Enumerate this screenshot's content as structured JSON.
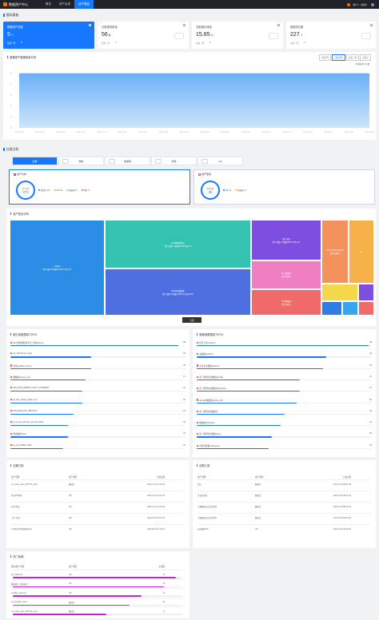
{
  "app": {
    "title": "数据资产中心",
    "user": "用户1（机构）"
  },
  "nav": [
    {
      "label": "概览"
    },
    {
      "label": "资产目录"
    },
    {
      "label": "资产报告"
    }
  ],
  "sections": {
    "overview": "指标看板",
    "distribution": "分类分析"
  },
  "stats": [
    {
      "label": "数据资产总数",
      "value": "5",
      "unit": "个",
      "sub1": "比前一天",
      "sub2": "↑0"
    },
    {
      "label": "总数据项数量",
      "value": "56",
      "unit": "条",
      "sub1": "比前一天",
      "sub2": "↑0"
    },
    {
      "label": "总数据存储量",
      "value": "15.85",
      "unit": "%",
      "sub1": "比前一天",
      "sub2": "↑0"
    },
    {
      "label": "数据项总数",
      "value": "227",
      "unit": "个",
      "sub1": "比前一天",
      "sub2": "↑0"
    }
  ],
  "trend": {
    "title": "数据资产数据增量分析",
    "tabs": [
      "过去7天",
      "过去30天",
      "过去一年",
      "自定义"
    ],
    "active_tab": 1,
    "legend": "数据资产总量",
    "color": "#5aa8f5",
    "chart_data": {
      "type": "area",
      "x": [
        "2021-11-28",
        "2021-12-02",
        "2021-12-06",
        "2021-12-10",
        "2021-12-14",
        "2021-12-18",
        "2021-12-22",
        "2021-12-26",
        "2021-12-30",
        "2022-01-03",
        "2022-01-07",
        "2022-01-11",
        "2022-01-15",
        "2022-01-19",
        "2022-01-23",
        "2022-01-27",
        "2022-01-31",
        "2022-02-04"
      ],
      "yticks": [
        "5",
        "4",
        "3",
        "2",
        "1",
        "0"
      ],
      "series": [
        {
          "values": [
            5,
            5,
            5,
            5,
            5,
            5,
            5,
            5,
            5,
            5,
            5,
            5,
            5,
            5,
            5,
            5,
            5,
            5
          ]
        }
      ],
      "ylim": [
        0,
        5
      ]
    }
  },
  "type_tabs": [
    "全部",
    "物联",
    "数据库",
    "视觉",
    "API"
  ],
  "summary": [
    {
      "title": "资产分布",
      "ring_label": "资产总数",
      "ring_value": "372",
      "legend": [
        {
          "label": "数据库 207",
          "color": "#1677ff"
        },
        {
          "label": "API 99",
          "color": "#ff9f43"
        },
        {
          "label": "数据集 29",
          "color": "#5ad8a6"
        },
        {
          "label": "物联 37",
          "color": "#f25c54"
        }
      ]
    },
    {
      "title": "资产使用",
      "ring_label": "使用总数",
      "ring_value": "35",
      "legend": [
        {
          "label": "API 13",
          "color": "#1677ff"
        },
        {
          "label": "数据集 22",
          "color": "#ff9f43"
        }
      ]
    }
  ],
  "treemap": {
    "title": "资产类目分析",
    "button": "全部",
    "tiles": [
      {
        "label": "• 项目Pr",
        "sub": "资产总数 58  数据 125.40  评估 417",
        "color": "#2b8de3"
      },
      {
        "label": "jdbc数据源测试",
        "sub": "资产总数 41  数据 55.00  评估 70",
        "color": "#36c2b1"
      },
      {
        "label": "jdbc测试数据源",
        "sub": "资产总数 14  数据 7183.10  评估 4917",
        "color": "#4f6fe0"
      },
      {
        "label": "施工应用",
        "sub": "资产总数 17  数据 88.73  评估 117",
        "color": "#7e4ee0"
      },
      {
        "label": "单一数据库",
        "sub": "资产总数 3",
        "color": "#ef7fc1"
      },
      {
        "label": "FTP/数据源",
        "sub": "资产总数 3",
        "color": "#f06a6a"
      },
      {
        "label": "doudouzhong04003",
        "sub": "资产总数 2",
        "color": "#f3925c"
      },
      {
        "label": "xxx",
        "sub": "",
        "color": "#f5b04a"
      },
      {
        "label": "",
        "sub": "",
        "color": "#f5d84a"
      },
      {
        "label": "",
        "sub": "",
        "color": "#2f7de0"
      },
      {
        "label": "",
        "sub": "",
        "color": "#36a6f0"
      },
      {
        "label": "",
        "sub": "",
        "color": "#7e4ee0"
      },
      {
        "label": "",
        "sub": "",
        "color": "#f06a6a"
      }
    ]
  },
  "rank_left": {
    "title": "被订阅数据量TOP10",
    "rows": [
      {
        "name": "jdbc测试数据源平台_升级(admin)",
        "count": "38",
        "pct": 96
      },
      {
        "name": "api_WorkGroup (api)",
        "count": "18",
        "pct": 46
      },
      {
        "name": "单机api(data_demo)",
        "count": "18",
        "pct": 46
      },
      {
        "name": "图数据(sqlyog_bul)",
        "count": "17",
        "pct": 43
      },
      {
        "name": "PRJ_BIZ3_ERP/PN_INOX_IOOMBOB",
        "count": "16",
        "pct": 41
      },
      {
        "name": "jd_data_design_table_test",
        "count": "16",
        "pct": 41
      },
      {
        "name": "PRJ_BIZ3_ETF_BIOSTAT",
        "count": "14",
        "pct": 36
      },
      {
        "name": "sz_kernel_DevTest_format_0015",
        "count": "13",
        "pct": 33
      },
      {
        "name": "测试数据Tools",
        "count": "13",
        "pct": 33
      },
      {
        "name": "jd_test_BOBA_0015",
        "count": "12",
        "pct": 30
      }
    ]
  },
  "rank_right": {
    "title": "被使用数据量TOP10",
    "rows": [
      {
        "name": "任务平台(cuckoo)",
        "count": "45",
        "pct": 98
      },
      {
        "name": "商品数(hive06)",
        "count": "34",
        "pct": 74
      },
      {
        "name": "企业名录数据(datach)",
        "count": "33",
        "pct": 72
      },
      {
        "name": "第一期所有的数据库(hl34)",
        "count": "27",
        "pct": 59
      },
      {
        "name": "第一期所有的数据库(hlothea)",
        "count": "27",
        "pct": 59
      },
      {
        "name": "docoll05数据库(docol_05)",
        "count": "26",
        "pct": 57
      },
      {
        "name": "第一期所有的数据库",
        "count": "23",
        "pct": 50
      },
      {
        "name": "数据融合Pipeline",
        "count": "22",
        "pct": 48
      },
      {
        "name": "第一期所有的数据(hive)",
        "count": "20",
        "pct": 43
      },
      {
        "name": "中国大数据(mtkrpoint)",
        "count": "19",
        "pct": 41
      }
    ]
  },
  "recent_left": {
    "title": "近期订阅",
    "headers": [
      "资产名称",
      "资产类型",
      "订阅日期"
    ],
    "rows": [
      [
        "sxy_base_plain_dB7781_ctime",
        "数据库",
        "2021-12-21 17:49:44"
      ],
      [
        "测试API新增",
        "API",
        "2021-10-21 15:27:46"
      ],
      [
        "test3.测试",
        "API",
        "2021-10-13 11:24:41"
      ],
      [
        "工作_测试",
        "API",
        "2021-09-22 18:41:15"
      ],
      [
        "test测试API服务版本test",
        "API",
        "2021-08-18 17:35:02"
      ]
    ]
  },
  "recent_right": {
    "title": "近期上架",
    "headers": [
      "资产名称",
      "资产类型",
      "上架日期"
    ],
    "rows": [
      [
        "测试",
        "数据库",
        "2021-12-28 09:51:38"
      ],
      [
        "企业运营数",
        "数据库",
        "2021-12-28 09:51:38"
      ],
      [
        "大量数据库安全性检测",
        "数据库",
        "2021-12-28 09:51:09"
      ],
      [
        "大量数据库安全性检测",
        "数据库",
        "2021-12-28 09:51:09"
      ],
      [
        "运营数据API",
        "API",
        "2021-12-28 09:51:09"
      ]
    ]
  },
  "hot": {
    "title": "热门资源",
    "headers": [
      "排名/资产名称",
      "资产类型",
      "点击量"
    ],
    "rows": [
      {
        "name": "api_TEST417",
        "type": "API",
        "count": "14",
        "pct": 96
      },
      {
        "name": "数据融合_测试服务",
        "type": "API",
        "count": "13",
        "pct": 89
      },
      {
        "name": "test测试_demo10",
        "type": "API",
        "count": "11",
        "pct": 76
      },
      {
        "name": "hjt_dingshao_gear",
        "type": "数据库",
        "count": "10",
        "pct": 69
      },
      {
        "name": "sxy_base_plain_dB7781_ctime",
        "type": "数据库",
        "count": "8",
        "pct": 55
      }
    ]
  }
}
